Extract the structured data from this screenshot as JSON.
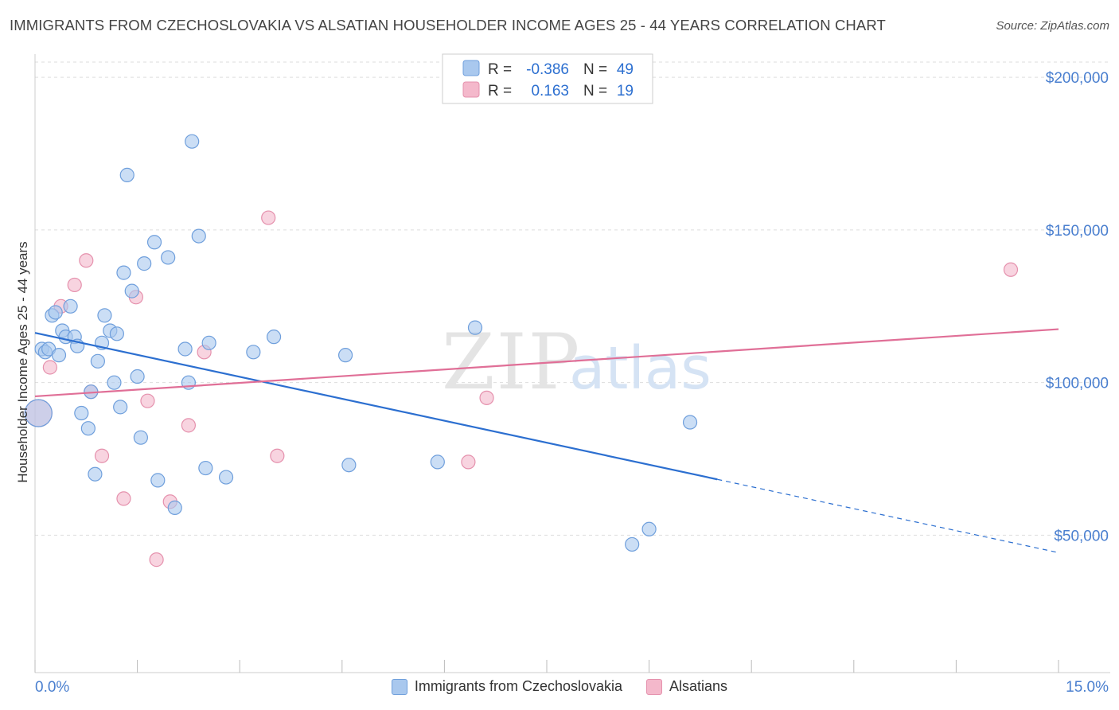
{
  "title": "IMMIGRANTS FROM CZECHOSLOVAKIA VS ALSATIAN HOUSEHOLDER INCOME AGES 25 - 44 YEARS CORRELATION CHART",
  "source": "Source: ZipAtlas.com",
  "watermark": {
    "part1": "ZIP",
    "part2": "atlas"
  },
  "legend_top": {
    "rows": [
      {
        "r_label": "R =",
        "r_value": "-0.386",
        "n_label": "N =",
        "n_value": "49"
      },
      {
        "r_label": "R =",
        "r_value": "0.163",
        "n_label": "N =",
        "n_value": "19"
      }
    ]
  },
  "legend_bottom": {
    "series1": "Immigrants from Czechoslovakia",
    "series2": "Alsatians"
  },
  "colors": {
    "blue_fill": "#a9c8ee",
    "blue_stroke": "#6f9fdc",
    "blue_line": "#2c6fd0",
    "pink_fill": "#f4b8cb",
    "pink_stroke": "#e591ad",
    "pink_line": "#e06f97",
    "tick_text": "#4a7fcf",
    "grid": "#dddddd"
  },
  "chart_data": {
    "type": "scatter",
    "title": "IMMIGRANTS FROM CZECHOSLOVAKIA VS ALSATIAN HOUSEHOLDER INCOME AGES 25 - 44 YEARS CORRELATION CHART",
    "xlabel": "",
    "ylabel": "Householder Income Ages 25 - 44 years",
    "xlim": [
      0,
      15
    ],
    "ylim": [
      5000,
      205000
    ],
    "x_tick_labels": [
      {
        "value": 0,
        "label": "0.0%"
      },
      {
        "value": 15,
        "label": "15.0%"
      }
    ],
    "y_tick_labels": [
      {
        "value": 50000,
        "label": "$50,000"
      },
      {
        "value": 100000,
        "label": "$100,000"
      },
      {
        "value": 150000,
        "label": "$150,000"
      },
      {
        "value": 200000,
        "label": "$200,000"
      }
    ],
    "grid": true,
    "legend_position": "top-center",
    "series": [
      {
        "name": "Immigrants from Czechoslovakia",
        "color": "#a9c8ee",
        "points": [
          [
            0.1,
            111000
          ],
          [
            0.15,
            110000
          ],
          [
            0.2,
            111000
          ],
          [
            0.25,
            122000
          ],
          [
            0.3,
            123000
          ],
          [
            0.35,
            109000
          ],
          [
            0.4,
            117000
          ],
          [
            0.45,
            115000
          ],
          [
            0.52,
            125000
          ],
          [
            0.58,
            115000
          ],
          [
            0.62,
            112000
          ],
          [
            0.68,
            90000
          ],
          [
            0.78,
            85000
          ],
          [
            0.82,
            97000
          ],
          [
            0.88,
            70000
          ],
          [
            0.92,
            107000
          ],
          [
            0.98,
            113000
          ],
          [
            1.02,
            122000
          ],
          [
            1.1,
            117000
          ],
          [
            1.16,
            100000
          ],
          [
            1.2,
            116000
          ],
          [
            1.25,
            92000
          ],
          [
            1.3,
            136000
          ],
          [
            1.35,
            168000
          ],
          [
            1.42,
            130000
          ],
          [
            1.5,
            102000
          ],
          [
            1.55,
            82000
          ],
          [
            1.6,
            139000
          ],
          [
            1.75,
            146000
          ],
          [
            1.8,
            68000
          ],
          [
            1.95,
            141000
          ],
          [
            2.05,
            59000
          ],
          [
            2.2,
            111000
          ],
          [
            2.25,
            100000
          ],
          [
            2.3,
            179000
          ],
          [
            2.4,
            148000
          ],
          [
            2.5,
            72000
          ],
          [
            2.55,
            113000
          ],
          [
            2.8,
            69000
          ],
          [
            3.2,
            110000
          ],
          [
            3.5,
            115000
          ],
          [
            4.55,
            109000
          ],
          [
            4.6,
            73000
          ],
          [
            5.9,
            74000
          ],
          [
            6.45,
            118000
          ],
          [
            8.75,
            47000
          ],
          [
            9.0,
            52000
          ],
          [
            9.6,
            87000
          ],
          [
            0.05,
            90000
          ]
        ]
      },
      {
        "name": "Alsatians",
        "color": "#f4b8cb",
        "points": [
          [
            0.05,
            90000
          ],
          [
            0.22,
            105000
          ],
          [
            0.38,
            125000
          ],
          [
            0.58,
            132000
          ],
          [
            0.75,
            140000
          ],
          [
            0.82,
            97000
          ],
          [
            0.98,
            76000
          ],
          [
            1.3,
            62000
          ],
          [
            1.48,
            128000
          ],
          [
            1.65,
            94000
          ],
          [
            1.78,
            42000
          ],
          [
            1.98,
            61000
          ],
          [
            2.25,
            86000
          ],
          [
            2.48,
            110000
          ],
          [
            3.42,
            154000
          ],
          [
            3.55,
            76000
          ],
          [
            6.35,
            74000
          ],
          [
            6.62,
            95000
          ],
          [
            14.3,
            137000
          ]
        ]
      }
    ],
    "trend_lines": [
      {
        "series": "Immigrants from Czechoslovakia",
        "x0": 0,
        "y0": 116300,
        "x1": 10.0,
        "y1": 68300,
        "dashed_to_x": 15.0,
        "dashed_to_y": 44300
      },
      {
        "series": "Alsatians",
        "x0": 0,
        "y0": 95500,
        "x1": 15.0,
        "y1": 117500
      }
    ]
  }
}
